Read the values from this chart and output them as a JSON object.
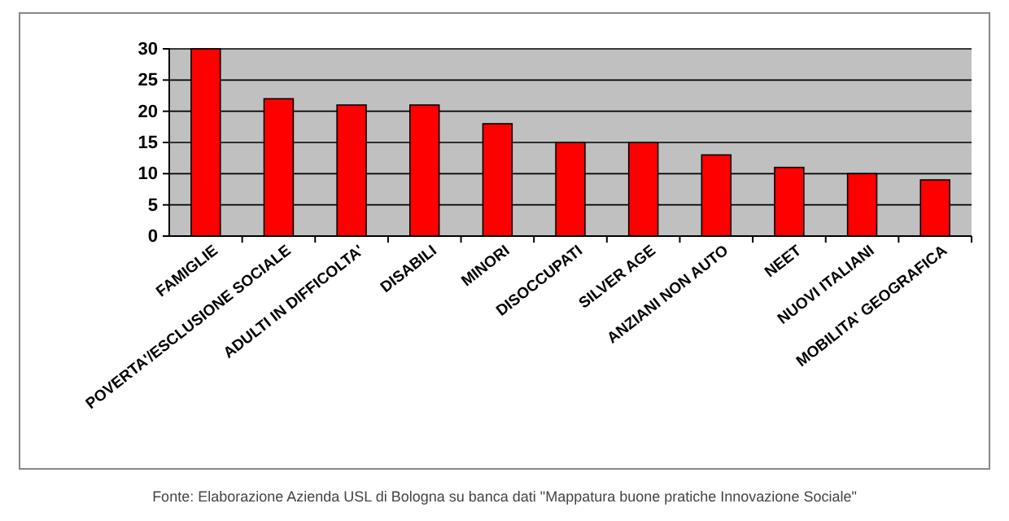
{
  "chart_data": {
    "type": "bar",
    "categories": [
      "FAMIGLIE",
      "POVERTA'/ESCLUSIONE SOCIALE",
      "ADULTI IN DIFFICOLTA'",
      "DISABILI",
      "MINORI",
      "DISOCCUPATI",
      "SILVER AGE",
      "ANZIANI NON AUTO",
      "NEET",
      "NUOVI ITALIANI",
      "MOBILITA' GEOGRAFICA"
    ],
    "values": [
      30,
      22,
      21,
      21,
      18,
      15,
      15,
      13,
      11,
      10,
      9
    ],
    "color": "#ff0000",
    "ylim": [
      0,
      30
    ],
    "yticks": [
      0,
      5,
      10,
      15,
      20,
      25,
      30
    ],
    "grid": "y",
    "annotations": [
      "Fonte: Elaborazione Azienda USL di Bologna su banca dati \"Mappatura buone pratiche Innovazione Sociale\""
    ]
  }
}
